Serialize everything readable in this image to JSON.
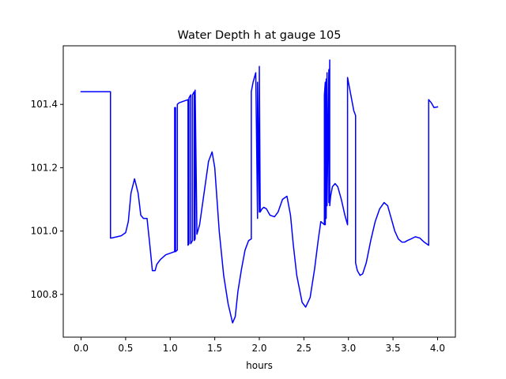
{
  "chart_data": {
    "type": "line",
    "title": "Water Depth h at gauge 105",
    "xlabel": "hours",
    "ylabel": "",
    "xlim": [
      -0.2,
      4.2
    ],
    "ylim": [
      100.665,
      101.585
    ],
    "xticks": [
      0.0,
      0.5,
      1.0,
      1.5,
      2.0,
      2.5,
      3.0,
      3.5,
      4.0
    ],
    "xtick_labels": [
      "0.0",
      "0.5",
      "1.0",
      "1.5",
      "2.0",
      "2.5",
      "3.0",
      "3.5",
      "4.0"
    ],
    "yticks": [
      100.8,
      101.0,
      101.2,
      101.4
    ],
    "ytick_labels": [
      "100.8",
      "101.0",
      "101.2",
      "101.4"
    ],
    "grid": false,
    "series": [
      {
        "color": "#0000ff",
        "x": [
          0.0,
          0.33,
          0.33,
          0.34,
          0.45,
          0.5,
          0.53,
          0.56,
          0.6,
          0.64,
          0.67,
          0.7,
          0.74,
          0.77,
          0.8,
          0.83,
          0.85,
          0.89,
          0.95,
          1.0,
          1.05,
          1.05,
          1.06,
          1.06,
          1.08,
          1.08,
          1.1,
          1.2,
          1.2,
          1.21,
          1.21,
          1.23,
          1.23,
          1.25,
          1.25,
          1.27,
          1.27,
          1.28,
          1.28,
          1.3,
          1.33,
          1.38,
          1.43,
          1.47,
          1.5,
          1.55,
          1.6,
          1.65,
          1.7,
          1.73,
          1.76,
          1.8,
          1.84,
          1.88,
          1.91,
          1.91,
          1.93,
          1.96,
          1.98,
          1.98,
          2.0,
          2.0,
          2.01,
          2.03,
          2.05,
          2.08,
          2.12,
          2.17,
          2.21,
          2.26,
          2.31,
          2.35,
          2.38,
          2.42,
          2.48,
          2.52,
          2.57,
          2.62,
          2.66,
          2.69,
          2.73,
          2.73,
          2.74,
          2.74,
          2.75,
          2.75,
          2.76,
          2.76,
          2.78,
          2.78,
          2.79,
          2.79,
          2.8,
          2.82,
          2.85,
          2.88,
          2.92,
          2.96,
          2.99,
          2.99,
          3.02,
          3.06,
          3.08,
          3.08,
          3.1,
          3.13,
          3.16,
          3.2,
          3.25,
          3.3,
          3.35,
          3.4,
          3.44,
          3.48,
          3.52,
          3.56,
          3.6,
          3.63,
          3.66,
          3.7,
          3.75,
          3.8,
          3.85,
          3.9,
          3.9,
          3.93,
          3.96,
          4.0
        ],
        "y": [
          101.44,
          101.44,
          100.978,
          100.978,
          100.985,
          100.995,
          101.03,
          101.12,
          101.165,
          101.12,
          101.05,
          101.04,
          101.04,
          100.96,
          100.875,
          100.875,
          100.895,
          100.91,
          100.925,
          100.93,
          100.935,
          101.39,
          101.39,
          100.935,
          100.94,
          101.4,
          101.405,
          101.415,
          100.955,
          100.96,
          101.42,
          101.43,
          100.96,
          100.97,
          101.43,
          101.44,
          100.97,
          100.975,
          101.445,
          100.99,
          101.02,
          101.12,
          101.22,
          101.25,
          101.2,
          101.0,
          100.86,
          100.77,
          100.71,
          100.73,
          100.81,
          100.88,
          100.94,
          100.97,
          100.975,
          101.44,
          101.47,
          101.5,
          101.04,
          101.47,
          101.06,
          101.52,
          101.06,
          101.07,
          101.075,
          101.07,
          101.05,
          101.045,
          101.06,
          101.1,
          101.11,
          101.05,
          100.96,
          100.86,
          100.775,
          100.76,
          100.79,
          100.88,
          100.97,
          101.03,
          101.02,
          101.43,
          101.47,
          101.02,
          101.48,
          101.04,
          101.5,
          101.08,
          101.51,
          101.09,
          101.54,
          101.08,
          101.11,
          101.14,
          101.15,
          101.14,
          101.1,
          101.05,
          101.02,
          101.485,
          101.44,
          101.38,
          101.365,
          100.9,
          100.875,
          100.86,
          100.865,
          100.9,
          100.97,
          101.03,
          101.07,
          101.09,
          101.08,
          101.04,
          101.0,
          100.975,
          100.965,
          100.965,
          100.97,
          100.975,
          100.982,
          100.978,
          100.965,
          100.955,
          101.415,
          101.405,
          101.39,
          101.392
        ]
      }
    ]
  }
}
